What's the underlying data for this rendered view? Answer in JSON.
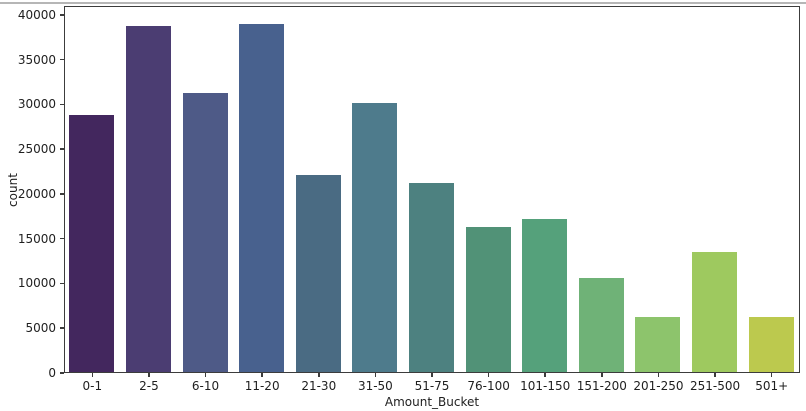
{
  "figure": {
    "background": "#ffffff",
    "top_border_color": "#b6b6b6",
    "spine_color": "#3c3c3c",
    "text_color": "#1f1f1f"
  },
  "chart_data": {
    "type": "bar",
    "title": "",
    "xlabel": "Amount_Bucket",
    "ylabel": "count",
    "categories": [
      "0-1",
      "2-5",
      "6-10",
      "11-20",
      "21-30",
      "31-50",
      "51-75",
      "76-100",
      "101-150",
      "151-200",
      "201-250",
      "251-500",
      "501+"
    ],
    "values": [
      28700,
      38600,
      31200,
      38900,
      22000,
      30000,
      21100,
      16200,
      17100,
      10500,
      6200,
      13400,
      6200
    ],
    "bar_colors": [
      "#43275e",
      "#4b3d72",
      "#4e5a87",
      "#48618e",
      "#4a6b83",
      "#4e7b8c",
      "#4d8180",
      "#519277",
      "#55a17b",
      "#6fb277",
      "#8dc46c",
      "#9ec95f",
      "#bcc94e"
    ],
    "ylim": [
      0,
      41000
    ],
    "yticks": [
      0,
      5000,
      10000,
      15000,
      20000,
      25000,
      30000,
      35000,
      40000
    ],
    "grid": false,
    "legend": "none"
  }
}
